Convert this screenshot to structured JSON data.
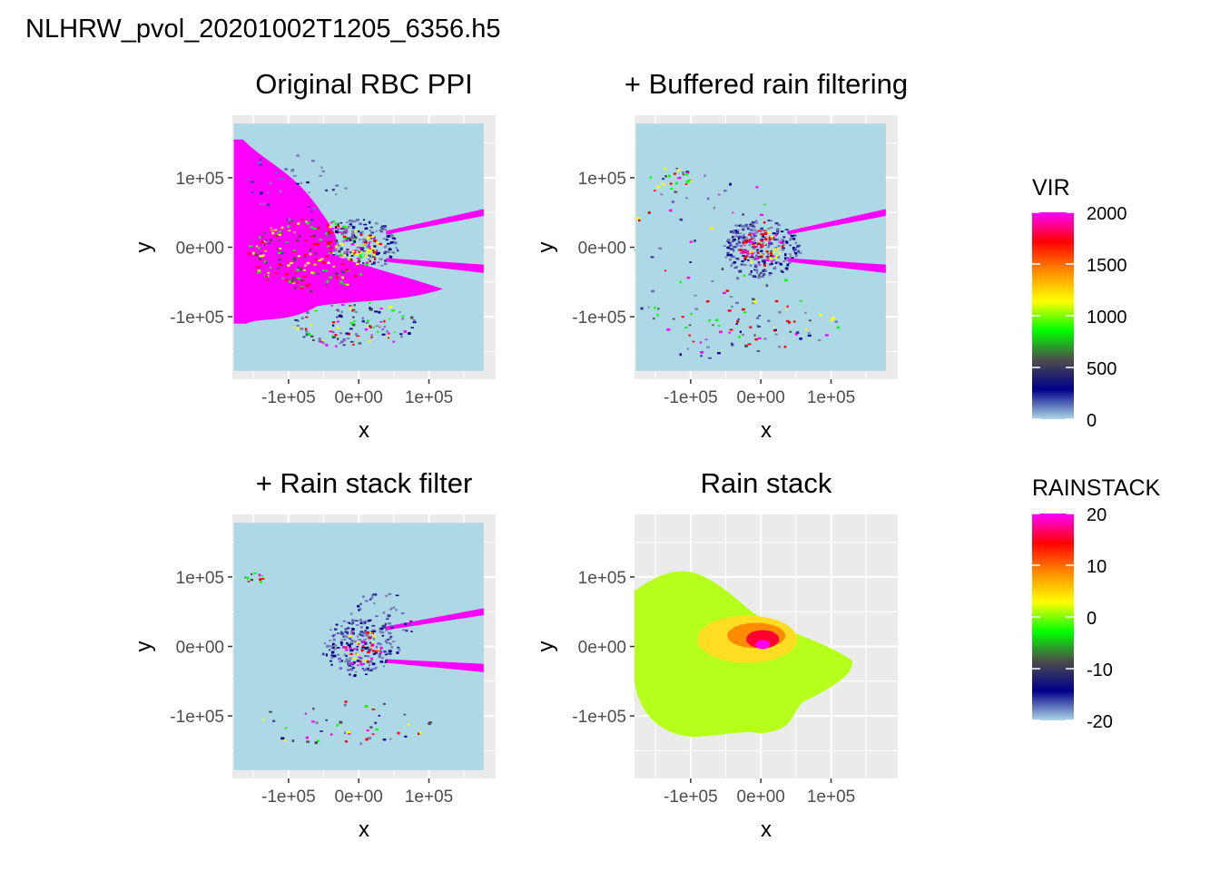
{
  "figure": {
    "title": "NLHRW_pvol_20201002T1205_6356.h5"
  },
  "colors": {
    "panel_background": "#ebebeb",
    "grid": "#ffffff",
    "radar_background": "#add8e6",
    "vir_gradient": [
      "#add8e6",
      "#00008b",
      "#4c4c4c",
      "#00ff00",
      "#ffff00",
      "#ff8c00",
      "#ff0000",
      "#ff00ff"
    ],
    "rainstack_gradient": [
      "#add8e6",
      "#00008b",
      "#4c4c4c",
      "#00ff00",
      "#ffff00",
      "#ff8c00",
      "#ff0000",
      "#ff00ff"
    ]
  },
  "chart_data": [
    {
      "type": "heatmap",
      "title": "Original RBC PPI",
      "xlabel": "x",
      "ylabel": "y",
      "xlim": [
        -180000,
        195000
      ],
      "ylim": [
        -190000,
        190000
      ],
      "x_ticks": [
        -100000,
        0,
        100000
      ],
      "x_tick_labels": [
        "-1e+05",
        "0e+00",
        "1e+05"
      ],
      "y_ticks": [
        -100000,
        0,
        100000
      ],
      "y_tick_labels": [
        "-1e+05",
        "0e+00",
        "1e+05"
      ],
      "fill": "VIR",
      "grid": true
    },
    {
      "type": "heatmap",
      "title": "+ Buffered rain filtering",
      "xlabel": "x",
      "ylabel": "y",
      "xlim": [
        -180000,
        195000
      ],
      "ylim": [
        -190000,
        190000
      ],
      "x_ticks": [
        -100000,
        0,
        100000
      ],
      "x_tick_labels": [
        "-1e+05",
        "0e+00",
        "1e+05"
      ],
      "y_ticks": [
        -100000,
        0,
        100000
      ],
      "y_tick_labels": [
        "-1e+05",
        "0e+00",
        "1e+05"
      ],
      "fill": "VIR",
      "grid": true
    },
    {
      "type": "heatmap",
      "title": "+ Rain stack filter",
      "xlabel": "x",
      "ylabel": "y",
      "xlim": [
        -180000,
        195000
      ],
      "ylim": [
        -190000,
        190000
      ],
      "x_ticks": [
        -100000,
        0,
        100000
      ],
      "x_tick_labels": [
        "-1e+05",
        "0e+00",
        "1e+05"
      ],
      "y_ticks": [
        -100000,
        0,
        100000
      ],
      "y_tick_labels": [
        "-1e+05",
        "0e+00",
        "1e+05"
      ],
      "fill": "VIR",
      "grid": true
    },
    {
      "type": "heatmap",
      "title": "Rain stack",
      "xlabel": "x",
      "ylabel": "y",
      "xlim": [
        -180000,
        195000
      ],
      "ylim": [
        -190000,
        190000
      ],
      "x_ticks": [
        -100000,
        0,
        100000
      ],
      "x_tick_labels": [
        "-1e+05",
        "0e+00",
        "1e+05"
      ],
      "y_ticks": [
        -100000,
        0,
        100000
      ],
      "y_tick_labels": [
        "-1e+05",
        "0e+00",
        "1e+05"
      ],
      "fill": "RAINSTACK",
      "grid": true
    }
  ],
  "legends": [
    {
      "title": "VIR",
      "min": 0,
      "max": 2000,
      "breaks": [
        0,
        500,
        1000,
        1500,
        2000
      ],
      "labels": [
        "0",
        "500",
        "1000",
        "1500",
        "2000"
      ]
    },
    {
      "title": "RAINSTACK",
      "min": -20,
      "max": 20,
      "breaks": [
        -20,
        -10,
        0,
        10,
        20
      ],
      "labels": [
        "-20",
        "-10",
        "0",
        "10",
        "20"
      ]
    }
  ]
}
